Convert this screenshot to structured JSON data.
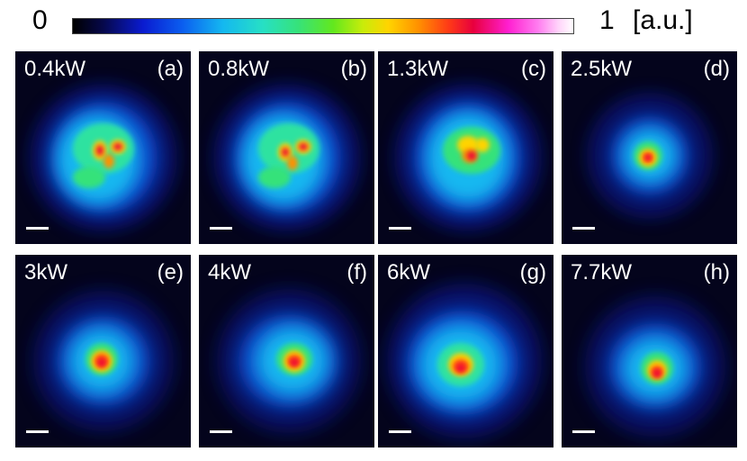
{
  "colorbar": {
    "min_label": "0",
    "max_label": "1",
    "unit_label": "[a.u.]"
  },
  "panels": [
    {
      "power": "0.4kW",
      "letter": "(a)"
    },
    {
      "power": "0.8kW",
      "letter": "(b)"
    },
    {
      "power": "1.3kW",
      "letter": "(c)"
    },
    {
      "power": "2.5kW",
      "letter": "(d)"
    },
    {
      "power": "3kW",
      "letter": "(e)"
    },
    {
      "power": "4kW",
      "letter": "(f)"
    },
    {
      "power": "6kW",
      "letter": "(g)"
    },
    {
      "power": "7.7kW",
      "letter": "(h)"
    }
  ]
}
